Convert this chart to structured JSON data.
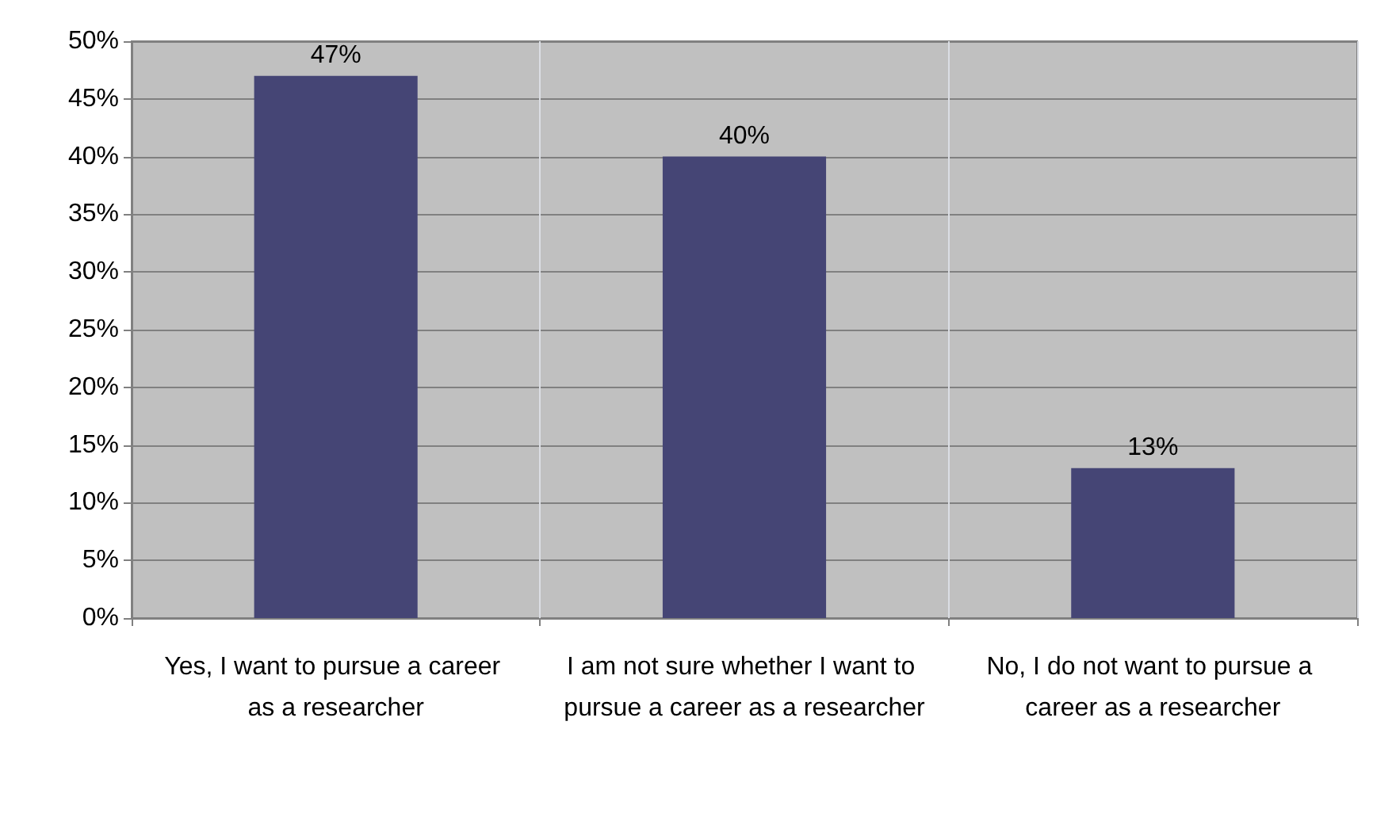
{
  "chart_data": {
    "type": "bar",
    "categories": [
      "Yes, I want to pursue a career as a researcher",
      "I am not sure whether I want to pursue a career as a researcher",
      "No, I do not want to pursue a career as a researcher"
    ],
    "values": [
      47,
      40,
      13
    ],
    "value_labels": [
      "47%",
      "40%",
      "13%"
    ],
    "color": "#454575",
    "ylim": [
      0,
      50
    ],
    "yticks": [
      {
        "value": 0,
        "label": "0%"
      },
      {
        "value": 5,
        "label": "5%"
      },
      {
        "value": 10,
        "label": "10%"
      },
      {
        "value": 15,
        "label": "15%"
      },
      {
        "value": 20,
        "label": "20%"
      },
      {
        "value": 25,
        "label": "25%"
      },
      {
        "value": 30,
        "label": "30%"
      },
      {
        "value": 35,
        "label": "35%"
      },
      {
        "value": 40,
        "label": "40%"
      },
      {
        "value": 45,
        "label": "45%"
      },
      {
        "value": 50,
        "label": "50%"
      }
    ],
    "grid": true
  }
}
